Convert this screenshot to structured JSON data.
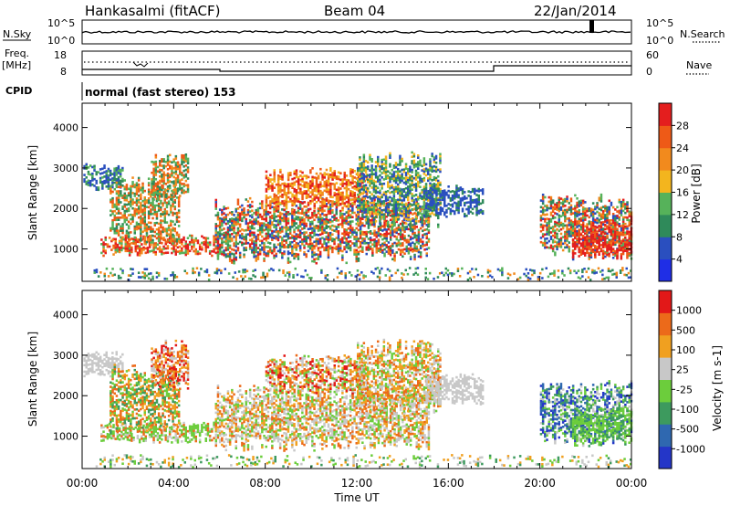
{
  "header": {
    "station": "Hankasalmi (fitACF)",
    "beam": "Beam 04",
    "date": "22/Jan/2014"
  },
  "noise_panel": {
    "left_label": "N.Sky",
    "right_label": "N.Search",
    "left_ticks": [
      "10^5",
      "10^0"
    ],
    "right_ticks": [
      "10^5",
      "10^0"
    ]
  },
  "freq_panel": {
    "left_label_1": "Freq.",
    "left_label_2": "[MHz]",
    "right_label": "Nave",
    "left_ticks": [
      "18",
      "8"
    ],
    "right_ticks": [
      "60",
      "0"
    ]
  },
  "cpid": {
    "label": "CPID",
    "text": "normal (fast stereo) 153"
  },
  "x_axis": {
    "label": "Time UT",
    "ticks": [
      "00:00",
      "04:00",
      "08:00",
      "12:00",
      "16:00",
      "20:00",
      "00:00"
    ]
  },
  "chart_data": [
    {
      "type": "heatmap",
      "name": "Power",
      "ylabel": "Slant Range [km]",
      "yticks": [
        1000,
        2000,
        3000,
        4000
      ],
      "ylim": [
        200,
        4600
      ],
      "xlim_hours": [
        0,
        24
      ],
      "colorbar": {
        "label": "Power [dB]",
        "ticks": [
          "4",
          "8",
          "12",
          "16",
          "20",
          "24",
          "28"
        ],
        "colors": [
          "#1f2ee6",
          "#2a4fbf",
          "#2f8a5a",
          "#56b25a",
          "#f3b51e",
          "#f28a1d",
          "#ee5a17",
          "#e41e1e"
        ]
      }
    },
    {
      "type": "heatmap",
      "name": "Velocity",
      "ylabel": "Slant Range [km]",
      "yticks": [
        1000,
        2000,
        3000,
        4000
      ],
      "ylim": [
        200,
        4600
      ],
      "xlim_hours": [
        0,
        24
      ],
      "colorbar": {
        "label": "Velocity [m s-1]",
        "ticks": [
          "1000",
          "500",
          "100",
          "25",
          "-25",
          "-100",
          "-500",
          "-1000"
        ],
        "colors": [
          "#2436c8",
          "#2f68b0",
          "#3d9a5e",
          "#6ccd3c",
          "#c8c8c8",
          "#f0a020",
          "#ec6a1a",
          "#e21818"
        ]
      }
    }
  ]
}
